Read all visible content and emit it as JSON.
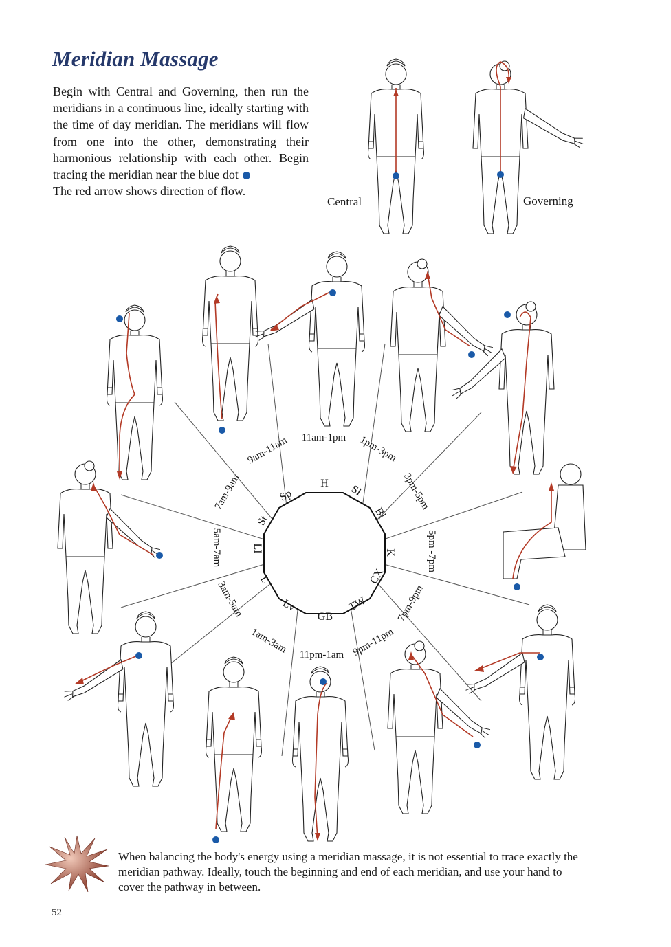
{
  "title": "Meridian Massage",
  "intro": {
    "line1": "Begin with Central and Governing, then run the meridians in a continuous line, ideally starting with the time of day meridian.  The meridians will flow from one into the other, demonstrating their harmonious relationship with each other. Begin tracing the meridian near the blue dot",
    "line2": "The red arrow shows direction of flow."
  },
  "labels": {
    "central": "Central",
    "governing": "Governing"
  },
  "meridians": [
    {
      "abbr": "H",
      "time": "11am-1pm"
    },
    {
      "abbr": "SI",
      "time": "1pm-3pm"
    },
    {
      "abbr": "Bl",
      "time": "3pm-5pm"
    },
    {
      "abbr": "K",
      "time": "5pm -7pm"
    },
    {
      "abbr": "CX",
      "time": "7pm-9pm"
    },
    {
      "abbr": "TW",
      "time": "9pm-11pm"
    },
    {
      "abbr": "GB",
      "time": "11pm-1am"
    },
    {
      "abbr": "Lv",
      "time": "1am-3am"
    },
    {
      "abbr": "L",
      "time": "3am-5am"
    },
    {
      "abbr": "LI",
      "time": "5am-7am"
    },
    {
      "abbr": "St",
      "time": "7am-9am"
    },
    {
      "abbr": "Sp",
      "time": "9am-11am"
    }
  ],
  "note": "When balancing the body's energy using a meridian massage, it is not essential to trace exactly the meridian pathway.  Ideally, touch the beginning and end of each meridian, and use your hand to cover the pathway in between.",
  "page_number": "52",
  "colors": {
    "title": "#26396b",
    "meridian_line": "#b33a26",
    "start_dot": "#1a5aa8",
    "star": "#a8503c"
  },
  "icons": {
    "start_marker": "blue-dot-icon",
    "flow_marker": "red-arrow-icon",
    "tip_marker": "starburst-icon"
  }
}
